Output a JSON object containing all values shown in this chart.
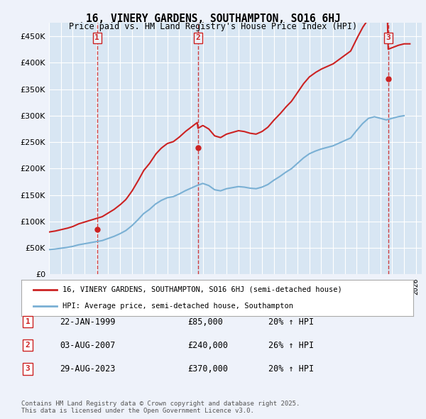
{
  "title": "16, VINERY GARDENS, SOUTHAMPTON, SO16 6HJ",
  "subtitle": "Price paid vs. HM Land Registry's House Price Index (HPI)",
  "bg_color": "#eef2fa",
  "plot_bg_color": "#d8e6f3",
  "grid_color": "#ffffff",
  "hpi_color": "#7ab0d4",
  "price_color": "#cc2222",
  "vline_color": "#cc2222",
  "ylim": [
    0,
    475000
  ],
  "yticks": [
    0,
    50000,
    100000,
    150000,
    200000,
    250000,
    300000,
    350000,
    400000,
    450000
  ],
  "ytick_labels": [
    "£0",
    "£50K",
    "£100K",
    "£150K",
    "£200K",
    "£250K",
    "£300K",
    "£350K",
    "£400K",
    "£450K"
  ],
  "transactions": [
    {
      "date_num": 1999.07,
      "price": 85000,
      "label": "1"
    },
    {
      "date_num": 2007.58,
      "price": 240000,
      "label": "2"
    },
    {
      "date_num": 2023.66,
      "price": 370000,
      "label": "3"
    }
  ],
  "legend_price_label": "16, VINERY GARDENS, SOUTHAMPTON, SO16 6HJ (semi-detached house)",
  "legend_hpi_label": "HPI: Average price, semi-detached house, Southampton",
  "table_rows": [
    {
      "num": "1",
      "date": "22-JAN-1999",
      "price": "£85,000",
      "change": "20% ↑ HPI"
    },
    {
      "num": "2",
      "date": "03-AUG-2007",
      "price": "£240,000",
      "change": "26% ↑ HPI"
    },
    {
      "num": "3",
      "date": "29-AUG-2023",
      "price": "£370,000",
      "change": "20% ↑ HPI"
    }
  ],
  "footnote": "Contains HM Land Registry data © Crown copyright and database right 2025.\nThis data is licensed under the Open Government Licence v3.0.",
  "xmin": 1995.0,
  "xmax": 2026.5
}
